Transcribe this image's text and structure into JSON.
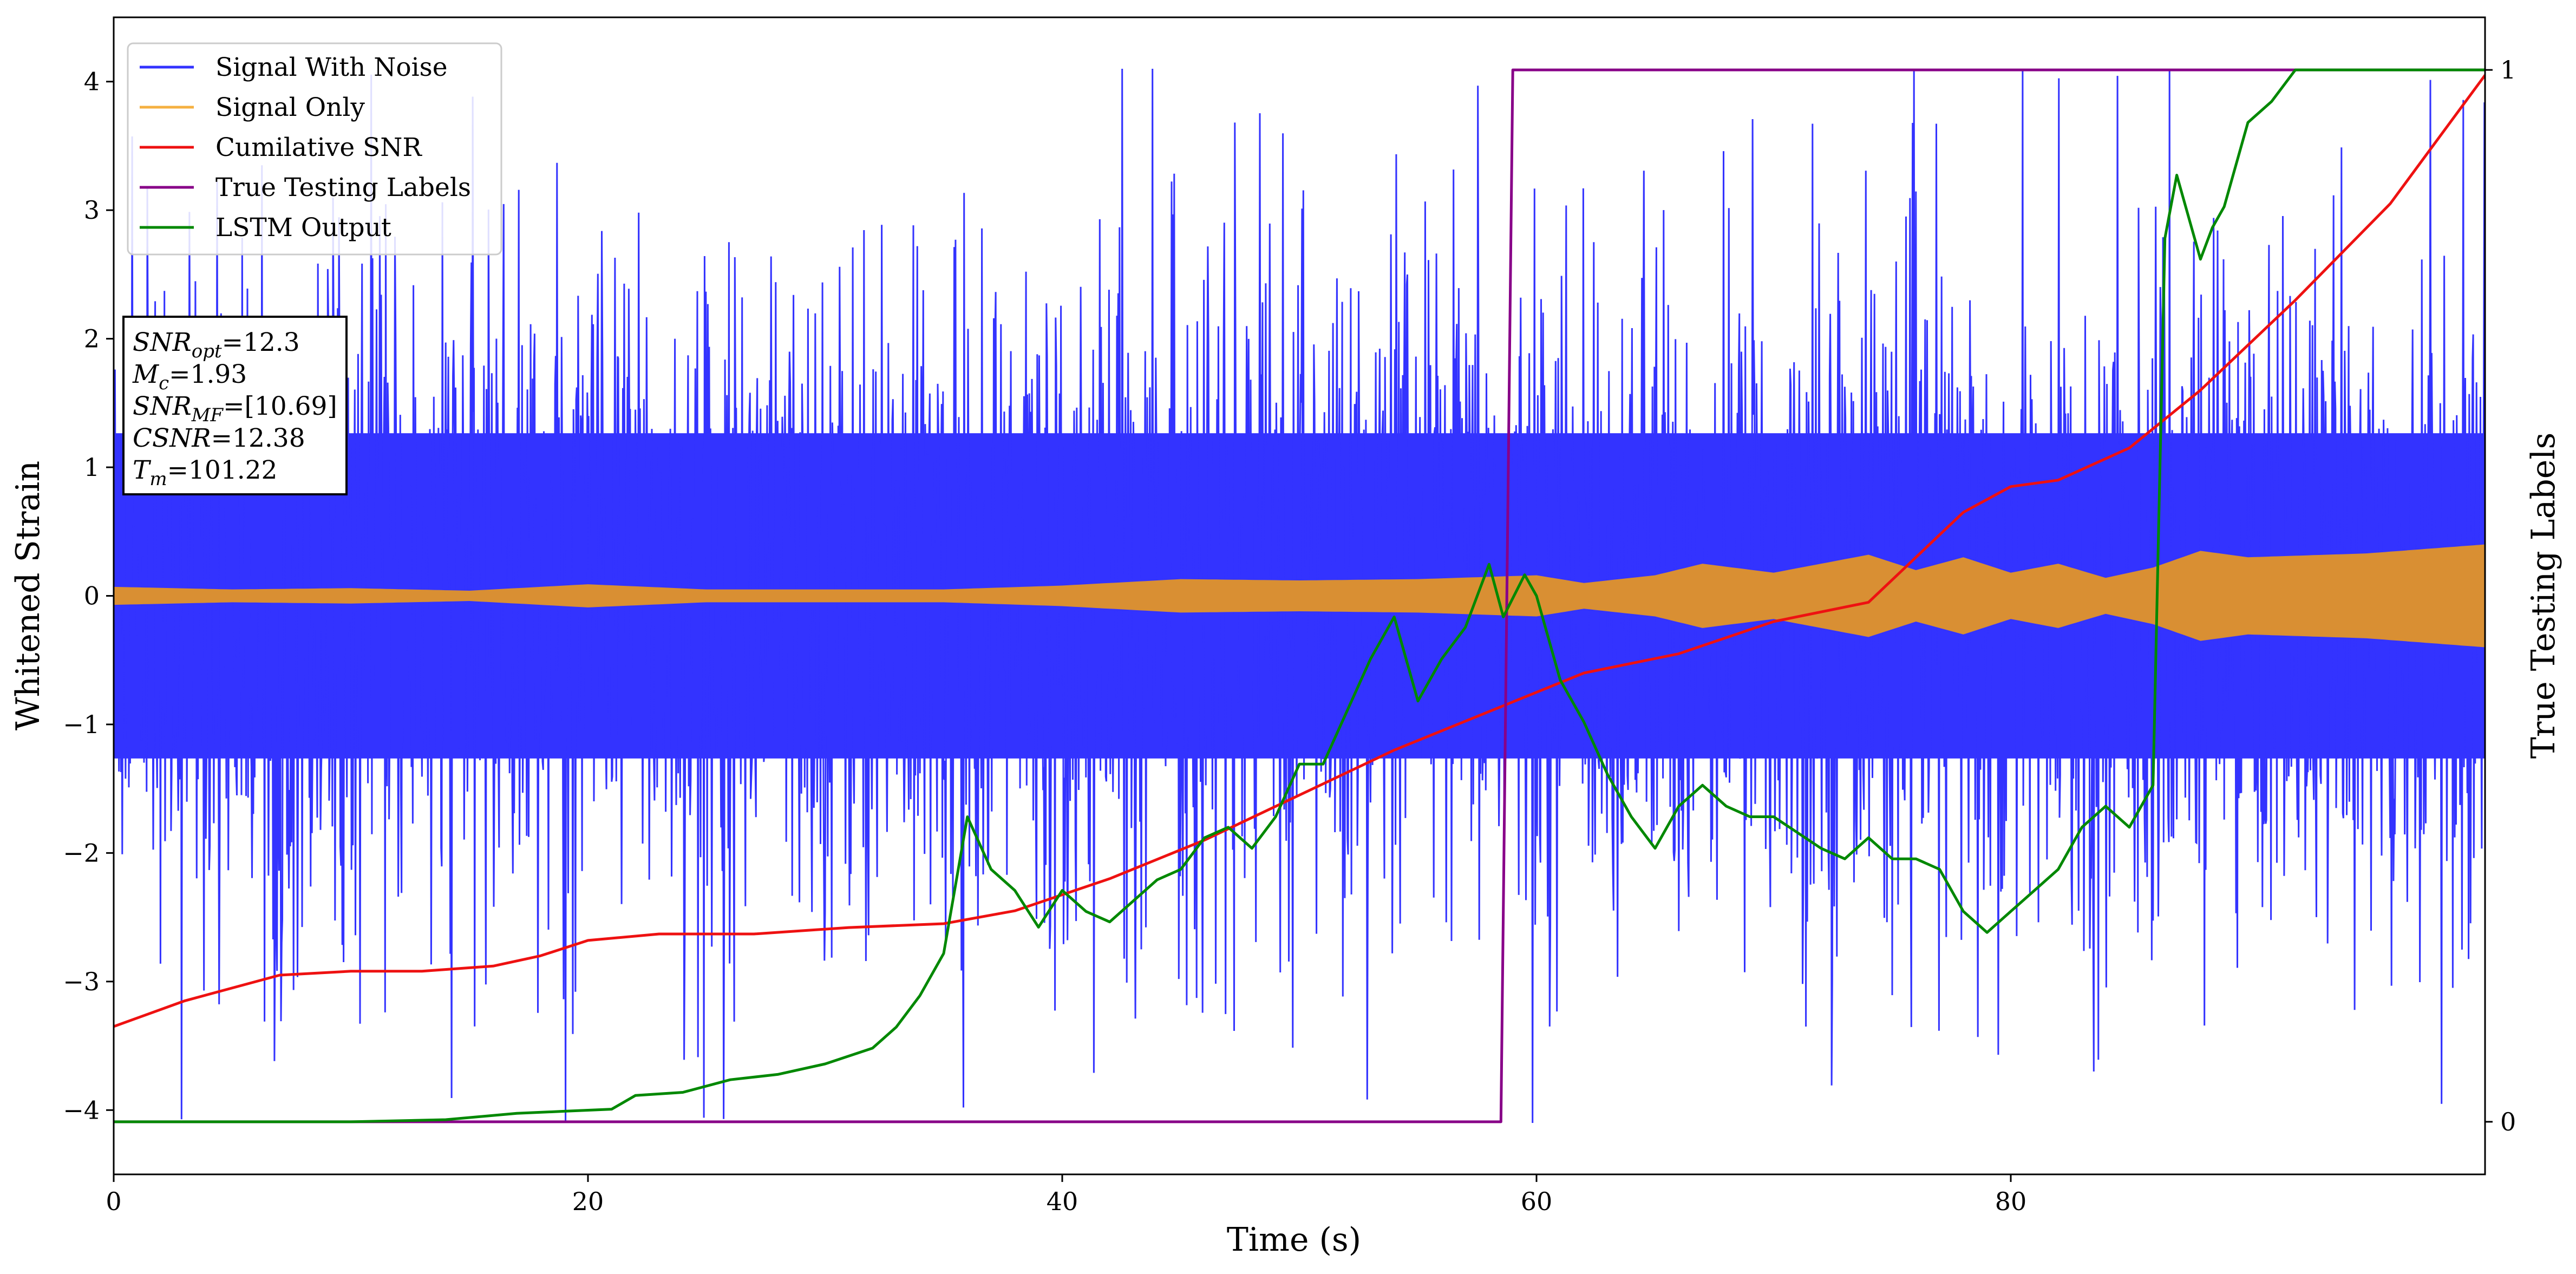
{
  "chart_data": {
    "type": "line",
    "xlabel": "Time (s)",
    "ylabel": "Whitened Strain",
    "y2label": "True Testing Labels",
    "xlim": [
      0,
      100
    ],
    "ylim": [
      -4.5,
      4.5
    ],
    "y2lim": [
      -0.05,
      1.05
    ],
    "xticks": [
      0,
      20,
      40,
      60,
      80
    ],
    "yticks": [
      -4,
      -3,
      -2,
      -1,
      0,
      1,
      2,
      3,
      4
    ],
    "y2ticks": [
      0,
      1
    ],
    "legend_position": "top-left",
    "series": [
      {
        "name": "Signal With Noise",
        "axis": "left",
        "color": "#3333ff",
        "style": "dense noise band",
        "envelope": {
          "typical_upper": 2.3,
          "typical_lower": -2.3,
          "max_peak": 4.1,
          "min_peak": -4.1
        }
      },
      {
        "name": "Signal Only",
        "axis": "left",
        "color": "#d98f33",
        "style": "filled oscillation band",
        "envelope": {
          "x": [
            0,
            5,
            10,
            15,
            20,
            25,
            30,
            35,
            40,
            45,
            50,
            55,
            60,
            62,
            65,
            67,
            70,
            72,
            74,
            76,
            78,
            80,
            82,
            84,
            86,
            88,
            90,
            95,
            100
          ],
          "amplitude": [
            0.07,
            0.05,
            0.06,
            0.04,
            0.09,
            0.05,
            0.05,
            0.05,
            0.08,
            0.13,
            0.12,
            0.13,
            0.16,
            0.1,
            0.16,
            0.25,
            0.18,
            0.25,
            0.32,
            0.2,
            0.3,
            0.18,
            0.25,
            0.14,
            0.22,
            0.35,
            0.3,
            0.33,
            0.4
          ]
        }
      },
      {
        "name": "Cumilative SNR",
        "axis": "left",
        "color": "#ee1111",
        "x": [
          0,
          3,
          7,
          10,
          13,
          16,
          18,
          20,
          23,
          27,
          31,
          35,
          38,
          42,
          46,
          50,
          54,
          58,
          62,
          66,
          70,
          74,
          76,
          78,
          80,
          82,
          85,
          88,
          92,
          96,
          100
        ],
        "y": [
          -3.35,
          -3.15,
          -2.95,
          -2.92,
          -2.92,
          -2.88,
          -2.8,
          -2.68,
          -2.63,
          -2.63,
          -2.58,
          -2.55,
          -2.45,
          -2.2,
          -1.9,
          -1.55,
          -1.2,
          -0.9,
          -0.6,
          -0.45,
          -0.2,
          -0.05,
          0.3,
          0.65,
          0.85,
          0.9,
          1.15,
          1.6,
          2.3,
          3.05,
          4.05
        ]
      },
      {
        "name": "True Testing Labels",
        "axis": "right",
        "color": "#880088",
        "x": [
          0,
          58.5,
          59.0,
          100
        ],
        "y": [
          0,
          0,
          1,
          1
        ]
      },
      {
        "name": "LSTM Output",
        "axis": "right",
        "color": "#008800",
        "x": [
          0,
          10,
          14,
          17,
          19,
          21,
          22,
          24,
          26,
          28,
          30,
          32,
          33,
          34,
          35,
          36,
          37,
          38,
          39,
          40,
          41,
          42,
          43,
          44,
          45,
          46,
          47,
          48,
          49,
          50,
          51,
          52,
          53,
          54,
          55,
          56,
          57,
          58,
          58.6,
          59.5,
          60,
          61,
          62,
          63,
          64,
          65,
          66,
          67,
          68,
          69,
          70,
          72,
          73,
          74,
          75,
          76,
          77,
          78,
          79,
          80,
          81,
          82,
          83,
          84,
          85,
          85.5,
          86,
          86.5,
          87,
          88,
          88.5,
          89,
          90,
          91,
          92,
          93,
          100
        ],
        "y": [
          0,
          0,
          0.002,
          0.008,
          0.01,
          0.012,
          0.025,
          0.028,
          0.04,
          0.045,
          0.055,
          0.07,
          0.09,
          0.12,
          0.16,
          0.29,
          0.24,
          0.22,
          0.185,
          0.22,
          0.2,
          0.19,
          0.21,
          0.23,
          0.24,
          0.27,
          0.28,
          0.26,
          0.29,
          0.34,
          0.34,
          0.39,
          0.44,
          0.48,
          0.4,
          0.44,
          0.47,
          0.53,
          0.48,
          0.52,
          0.5,
          0.42,
          0.38,
          0.33,
          0.29,
          0.26,
          0.3,
          0.32,
          0.3,
          0.29,
          0.29,
          0.26,
          0.25,
          0.27,
          0.25,
          0.25,
          0.24,
          0.2,
          0.18,
          0.2,
          0.22,
          0.24,
          0.28,
          0.3,
          0.28,
          0.3,
          0.32,
          0.84,
          0.9,
          0.82,
          0.85,
          0.87,
          0.95,
          0.97,
          1.0,
          1.0,
          1.0
        ]
      }
    ],
    "annotations": [
      {
        "label": "SNR",
        "sub": "opt",
        "value": "=12.3"
      },
      {
        "label": "M",
        "sub": "c",
        "value": "=1.93"
      },
      {
        "label": "SNR",
        "sub": "MF",
        "value": "=[10.69]"
      },
      {
        "label": "CSNR",
        "sub": "",
        "value": "=12.38"
      },
      {
        "label": "T",
        "sub": "m",
        "value": "=101.22"
      }
    ]
  }
}
